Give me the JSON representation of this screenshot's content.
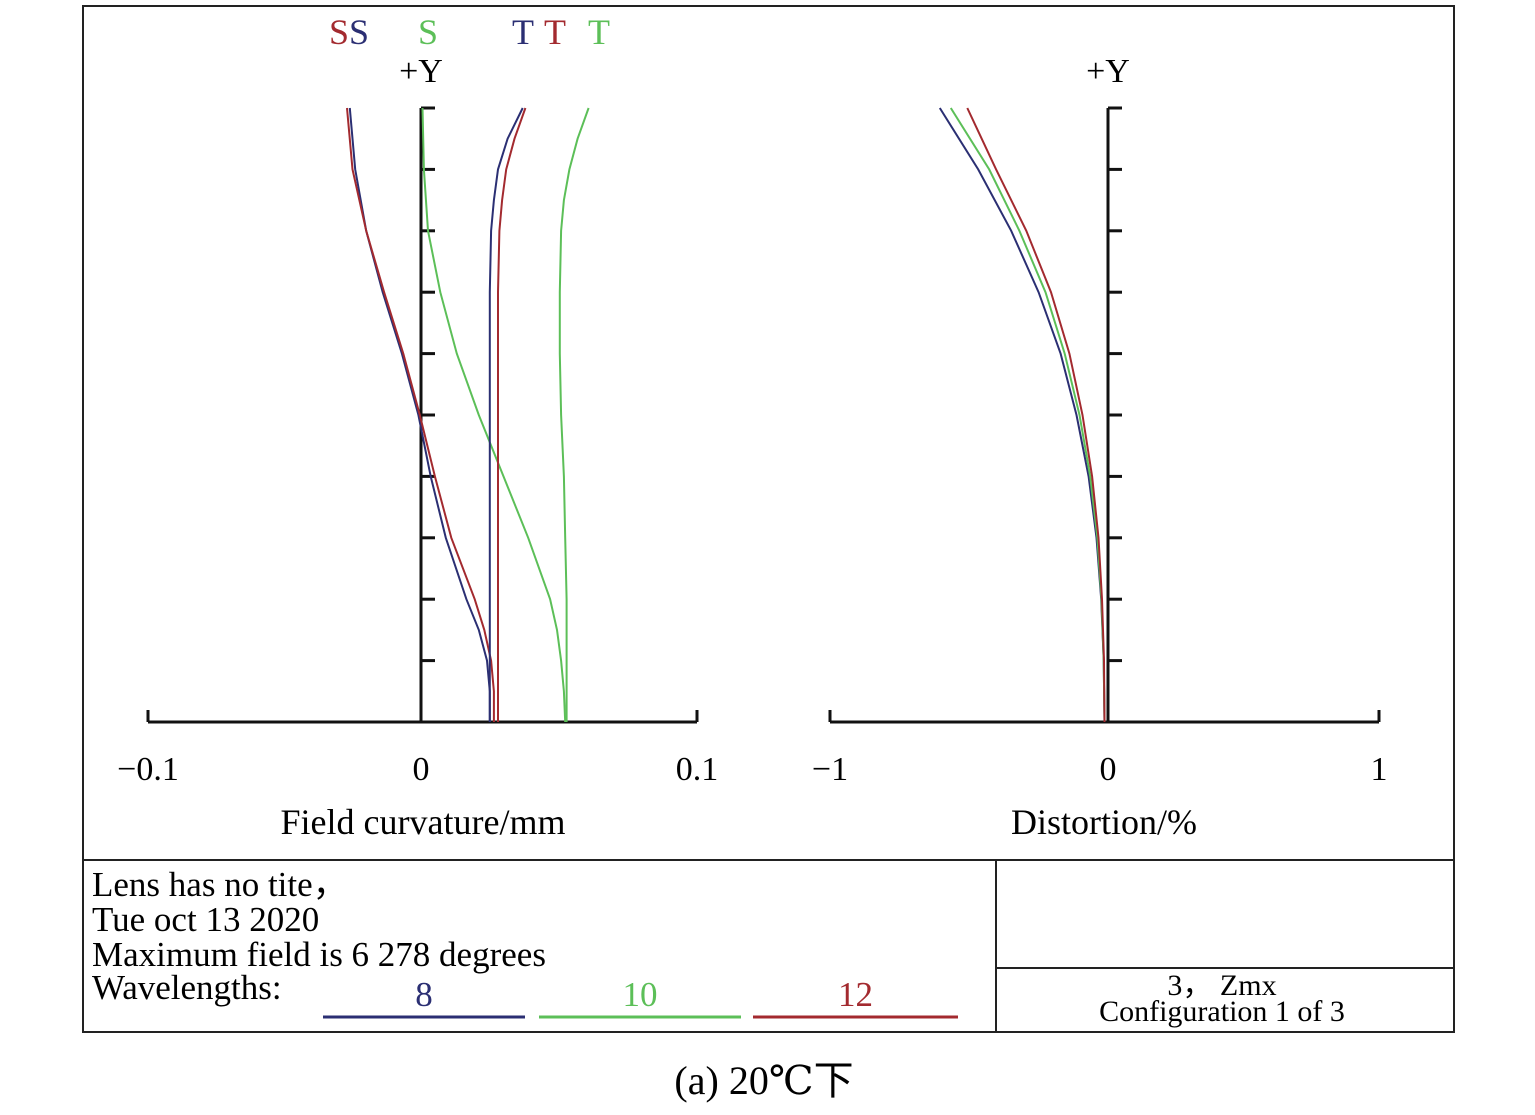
{
  "colors": {
    "blue": "#2b2f73",
    "green": "#5cbf58",
    "red": "#a32a2f",
    "axis": "#111111",
    "frame": "#222222"
  },
  "chart_data": [
    {
      "type": "line",
      "title": "",
      "xlabel": "Field curvature/mm",
      "ylabel": "+Y",
      "xlim": [
        -0.1,
        0.1
      ],
      "ylim": [
        0,
        1
      ],
      "x_ticks": [
        "−0.1",
        "0",
        "0.1"
      ],
      "legend_labels": [
        {
          "text": "S",
          "color": "red"
        },
        {
          "text": "S",
          "color": "blue"
        },
        {
          "text": "S",
          "color": "green"
        },
        {
          "text": "T",
          "color": "blue"
        },
        {
          "text": "T",
          "color": "red"
        },
        {
          "text": "T",
          "color": "green"
        }
      ],
      "series": [
        {
          "wavelength": "8",
          "kind": "S",
          "color": "blue",
          "y": [
            0,
            0.05,
            0.1,
            0.15,
            0.2,
            0.3,
            0.4,
            0.5,
            0.6,
            0.7,
            0.8,
            0.9,
            1.0
          ],
          "x": [
            0.0245,
            0.0245,
            0.0235,
            0.0205,
            0.016,
            0.0085,
            0.003,
            -0.0015,
            -0.0075,
            -0.0145,
            -0.0205,
            -0.0245,
            -0.0265
          ]
        },
        {
          "wavelength": "12",
          "kind": "S",
          "color": "red",
          "y": [
            0,
            0.05,
            0.1,
            0.15,
            0.2,
            0.3,
            0.4,
            0.5,
            0.6,
            0.7,
            0.8,
            0.9,
            1.0
          ],
          "x": [
            0.026,
            0.026,
            0.025,
            0.0225,
            0.019,
            0.0105,
            0.0045,
            -0.001,
            -0.007,
            -0.014,
            -0.0205,
            -0.0255,
            -0.0275
          ]
        },
        {
          "wavelength": "10",
          "kind": "S",
          "color": "green",
          "y": [
            0,
            0.05,
            0.1,
            0.15,
            0.2,
            0.3,
            0.4,
            0.5,
            0.6,
            0.7,
            0.8,
            0.9,
            1.0
          ],
          "x": [
            0.052,
            0.0515,
            0.0505,
            0.049,
            0.0465,
            0.0385,
            0.0295,
            0.0205,
            0.0125,
            0.0065,
            0.002,
            0.0005,
            0.0
          ]
        },
        {
          "wavelength": "8",
          "kind": "T",
          "color": "blue",
          "y": [
            0,
            0.1,
            0.2,
            0.3,
            0.4,
            0.5,
            0.6,
            0.7,
            0.8,
            0.85,
            0.9,
            0.95,
            1.0
          ],
          "x": [
            0.0245,
            0.0245,
            0.0245,
            0.0245,
            0.0245,
            0.0245,
            0.0245,
            0.0245,
            0.025,
            0.026,
            0.0275,
            0.031,
            0.0365
          ]
        },
        {
          "wavelength": "12",
          "kind": "T",
          "color": "red",
          "y": [
            0,
            0.1,
            0.2,
            0.3,
            0.4,
            0.5,
            0.6,
            0.7,
            0.8,
            0.85,
            0.9,
            0.95,
            1.0
          ],
          "x": [
            0.0275,
            0.0275,
            0.0275,
            0.0275,
            0.0275,
            0.0275,
            0.0275,
            0.0275,
            0.028,
            0.029,
            0.0305,
            0.0335,
            0.0375
          ]
        },
        {
          "wavelength": "10",
          "kind": "T",
          "color": "green",
          "y": [
            0,
            0.1,
            0.2,
            0.3,
            0.4,
            0.5,
            0.6,
            0.7,
            0.8,
            0.85,
            0.9,
            0.95,
            1.0
          ],
          "x": [
            0.0525,
            0.0525,
            0.0525,
            0.052,
            0.0515,
            0.0505,
            0.05,
            0.05,
            0.0505,
            0.0515,
            0.0535,
            0.0565,
            0.0605
          ]
        }
      ]
    },
    {
      "type": "line",
      "title": "",
      "xlabel": "Distortion/%",
      "ylabel": "+Y",
      "xlim": [
        -1,
        1
      ],
      "ylim": [
        0,
        1
      ],
      "x_ticks": [
        "−1",
        "0",
        "1"
      ],
      "series": [
        {
          "wavelength": "8",
          "color": "blue",
          "y": [
            0,
            0.1,
            0.2,
            0.3,
            0.4,
            0.5,
            0.6,
            0.7,
            0.8,
            0.9,
            1.0
          ],
          "x": [
            0,
            -0.003,
            -0.012,
            -0.029,
            -0.058,
            -0.102,
            -0.16,
            -0.24,
            -0.34,
            -0.46,
            -0.6
          ]
        },
        {
          "wavelength": "10",
          "color": "green",
          "y": [
            0,
            0.1,
            0.2,
            0.3,
            0.4,
            0.5,
            0.6,
            0.7,
            0.8,
            0.9,
            1.0
          ],
          "x": [
            0,
            -0.003,
            -0.011,
            -0.026,
            -0.052,
            -0.091,
            -0.145,
            -0.215,
            -0.31,
            -0.42,
            -0.56
          ]
        },
        {
          "wavelength": "12",
          "color": "red",
          "y": [
            0,
            0.1,
            0.2,
            0.3,
            0.4,
            0.5,
            0.6,
            0.7,
            0.8,
            0.9,
            1.0
          ],
          "x": [
            0,
            -0.002,
            -0.009,
            -0.022,
            -0.045,
            -0.08,
            -0.128,
            -0.195,
            -0.285,
            -0.395,
            -0.5
          ]
        }
      ]
    }
  ],
  "info": {
    "line1": "Lens has no tite，",
    "line2": "Tue oct 13 2020",
    "line3": "Maximum field is 6 278 degrees",
    "wavelengths_label": "Wavelengths:",
    "wavelengths": [
      {
        "label": "8",
        "color": "blue"
      },
      {
        "label": "10",
        "color": "green"
      },
      {
        "label": "12",
        "color": "red"
      }
    ]
  },
  "config": {
    "line1": "3， Zmx",
    "line2": "Configuration 1 of 3"
  },
  "caption": "(a) 20℃下"
}
